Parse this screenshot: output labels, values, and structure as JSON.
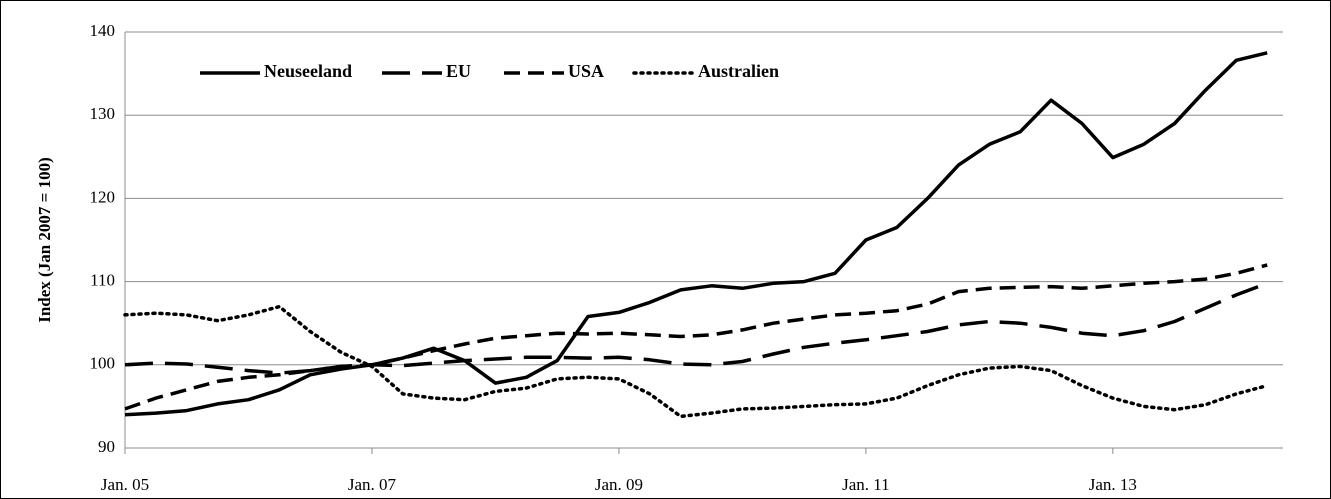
{
  "chart_data": {
    "type": "line",
    "y_label": "Index (Jan 2007 = 100)",
    "categories": [
      "Jan. 05",
      null,
      null,
      null,
      null,
      null,
      null,
      null,
      "Jan. 07",
      null,
      null,
      null,
      null,
      null,
      null,
      null,
      "Jan. 09",
      null,
      null,
      null,
      null,
      null,
      null,
      null,
      "Jan. 11",
      null,
      null,
      null,
      null,
      null,
      null,
      null,
      "Jan. 13",
      null,
      null,
      null,
      null,
      null
    ],
    "series": [
      {
        "name": "Neuseeland",
        "color": "#000000",
        "style": "solid",
        "values": [
          94,
          94.2,
          94.5,
          95.3,
          95.8,
          97,
          98.8,
          99.5,
          100,
          100.8,
          102,
          100.5,
          97.8,
          98.5,
          100.5,
          105.8,
          106.3,
          107.5,
          109,
          109.5,
          109.2,
          109.8,
          110,
          111,
          115,
          116.5,
          120,
          124,
          126.5,
          128,
          131.8,
          129,
          124.9,
          126.5,
          129,
          133,
          136.6,
          137.5
        ]
      },
      {
        "name": "EU",
        "color": "#000000",
        "style": "long-dash",
        "values": [
          100,
          100.2,
          100.1,
          99.7,
          99.3,
          99.0,
          99.3,
          99.8,
          100,
          99.9,
          100.2,
          100.5,
          100.7,
          100.9,
          100.9,
          100.8,
          100.9,
          100.6,
          100.1,
          100.0,
          100.4,
          101.3,
          102.1,
          102.6,
          103.0,
          103.5,
          104.0,
          104.8,
          105.2,
          105.0,
          104.5,
          103.8,
          103.5,
          104.1,
          105.2,
          106.8,
          108.4,
          109.8
        ]
      },
      {
        "name": "USA",
        "color": "#000000",
        "style": "dash",
        "values": [
          94.7,
          96,
          97,
          98,
          98.5,
          98.8,
          99.3,
          99.8,
          100,
          100.8,
          101.7,
          102.5,
          103.2,
          103.5,
          103.8,
          103.7,
          103.8,
          103.6,
          103.4,
          103.6,
          104.2,
          105,
          105.5,
          106,
          106.2,
          106.5,
          107.3,
          108.8,
          109.2,
          109.3,
          109.4,
          109.2,
          109.5,
          109.8,
          110,
          110.3,
          111,
          112
        ]
      },
      {
        "name": "Australien",
        "color": "#000000",
        "style": "dot",
        "values": [
          106,
          106.2,
          106,
          105.3,
          106,
          107,
          104,
          101.5,
          99.8,
          96.5,
          96,
          95.8,
          96.8,
          97.2,
          98.3,
          98.5,
          98.3,
          96.5,
          93.8,
          94.2,
          94.7,
          94.8,
          95,
          95.2,
          95.3,
          96,
          97.5,
          98.8,
          99.6,
          99.8,
          99.3,
          97.5,
          96,
          95,
          94.6,
          95.2,
          96.5,
          97.5
        ]
      }
    ],
    "ylim": [
      90,
      140
    ],
    "yticks": [
      90,
      100,
      110,
      120,
      130,
      140
    ],
    "grid": true,
    "legend": "top-left"
  }
}
